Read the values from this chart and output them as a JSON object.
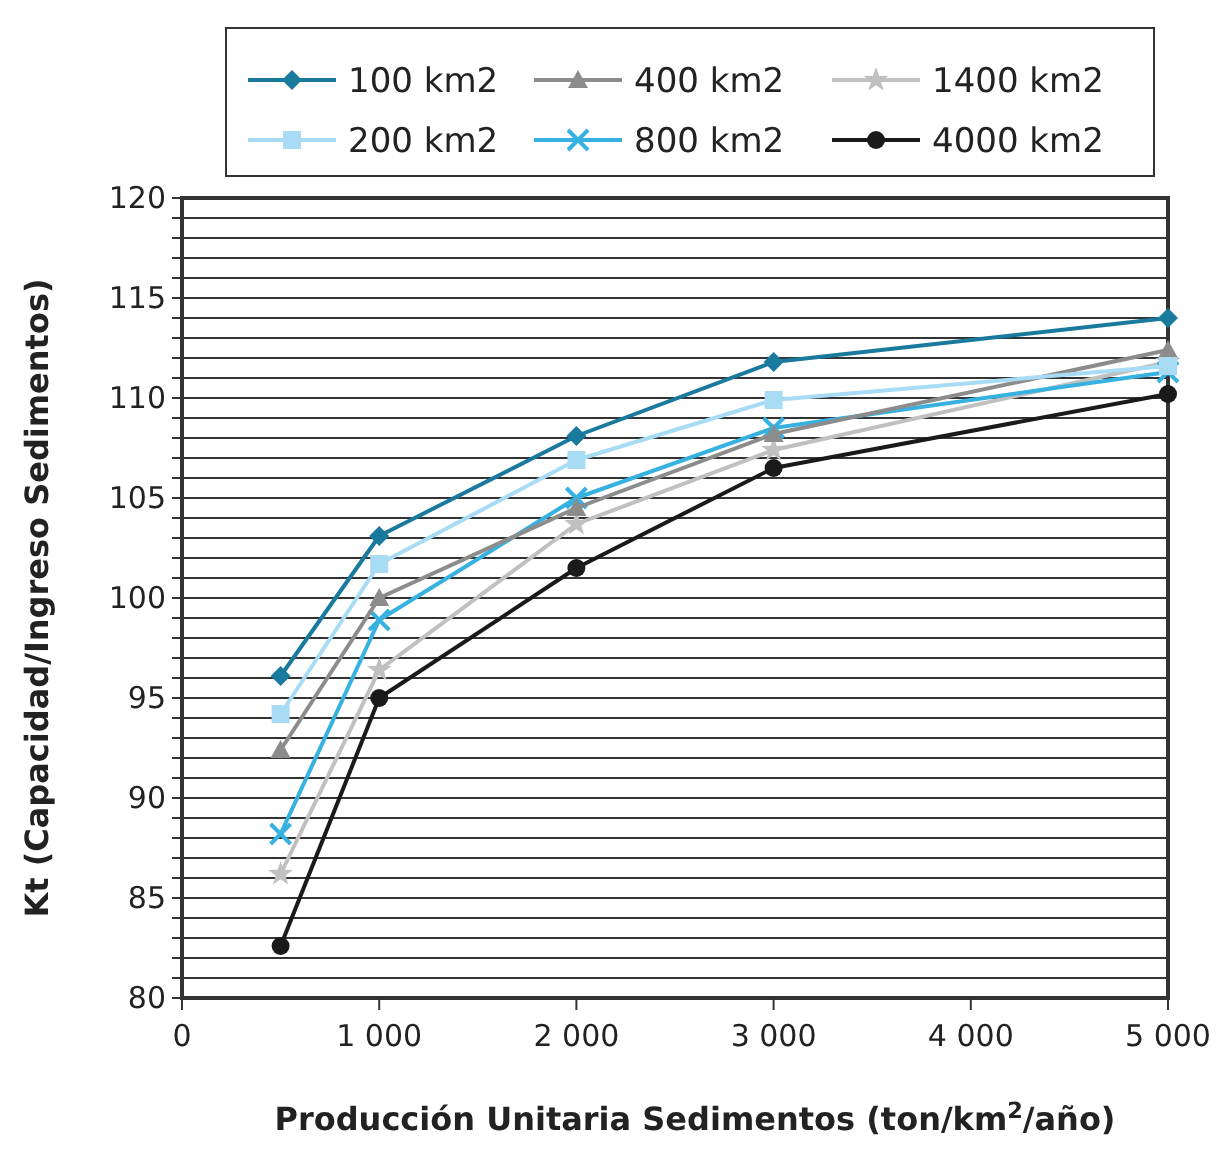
{
  "chart_data": {
    "type": "line",
    "xlabel": "Producción Unitaria Sedimentos (ton/km$^{2}$/año)",
    "ylabel": "Kt (Capacidad/Ingreso Sedimentos)",
    "x": [
      500,
      1000,
      2000,
      3000,
      5000
    ],
    "xlim": [
      0,
      5000
    ],
    "xticks": [
      0,
      {
        "value": 1000,
        "label": "1 000"
      },
      {
        "value": 2000,
        "label": "2 000"
      },
      {
        "value": 3000,
        "label": "3 000"
      },
      {
        "value": 4000,
        "label": "4 000"
      },
      {
        "value": 5000,
        "label": "5 000"
      }
    ],
    "ylim": [
      80,
      120
    ],
    "yticks": [
      80,
      {
        "value": 81,
        "label": null
      },
      {
        "value": 82,
        "label": null
      },
      {
        "value": 83,
        "label": null
      },
      {
        "value": 84,
        "label": null
      },
      85,
      {
        "value": 86,
        "label": null
      },
      {
        "value": 87,
        "label": null
      },
      {
        "value": 88,
        "label": null
      },
      {
        "value": 89,
        "label": null
      },
      90,
      {
        "value": 91,
        "label": null
      },
      {
        "value": 92,
        "label": null
      },
      {
        "value": 93,
        "label": null
      },
      {
        "value": 94,
        "label": null
      },
      95,
      {
        "value": 96,
        "label": null
      },
      {
        "value": 97,
        "label": null
      },
      {
        "value": 98,
        "label": null
      },
      {
        "value": 99,
        "label": null
      },
      100,
      {
        "value": 101,
        "label": null
      },
      {
        "value": 102,
        "label": null
      },
      {
        "value": 103,
        "label": null
      },
      {
        "value": 104,
        "label": null
      },
      105,
      {
        "value": 106,
        "label": null
      },
      {
        "value": 107,
        "label": null
      },
      {
        "value": 108,
        "label": null
      },
      {
        "value": 109,
        "label": null
      },
      110,
      {
        "value": 111,
        "label": null
      },
      {
        "value": 112,
        "label": null
      },
      {
        "value": 113,
        "label": null
      },
      {
        "value": 114,
        "label": null
      },
      115,
      {
        "value": 116,
        "label": null
      },
      {
        "value": 117,
        "label": null
      },
      {
        "value": 118,
        "label": null
      },
      {
        "value": 119,
        "label": null
      },
      120
    ],
    "grid": "y",
    "legend": "top",
    "line_style": "solid",
    "series": [
      {
        "name": "100 km2",
        "color": "#1a7a9e",
        "marker": "diamond",
        "values": [
          96.1,
          103.1,
          108.1,
          111.8,
          114.0
        ]
      },
      {
        "name": "200 km2",
        "color": "#a8dcf5",
        "marker": "square",
        "values": [
          94.2,
          101.7,
          106.9,
          109.9,
          111.6
        ]
      },
      {
        "name": "400 km2",
        "color": "#8c8c8c",
        "marker": "triangle",
        "values": [
          92.4,
          100.0,
          104.5,
          108.2,
          112.4
        ]
      },
      {
        "name": "800 km2",
        "color": "#36b1e0",
        "marker": "cross",
        "values": [
          88.2,
          98.9,
          105.0,
          108.5,
          111.3
        ]
      },
      {
        "name": "1400 km2",
        "color": "#c0c0c0",
        "marker": "star",
        "values": [
          86.2,
          96.4,
          103.7,
          107.4,
          111.8
        ]
      },
      {
        "name": "4000 km2",
        "color": "#1a1a1a",
        "marker": "circle",
        "values": [
          82.6,
          95.0,
          101.5,
          106.5,
          110.2
        ]
      }
    ]
  }
}
